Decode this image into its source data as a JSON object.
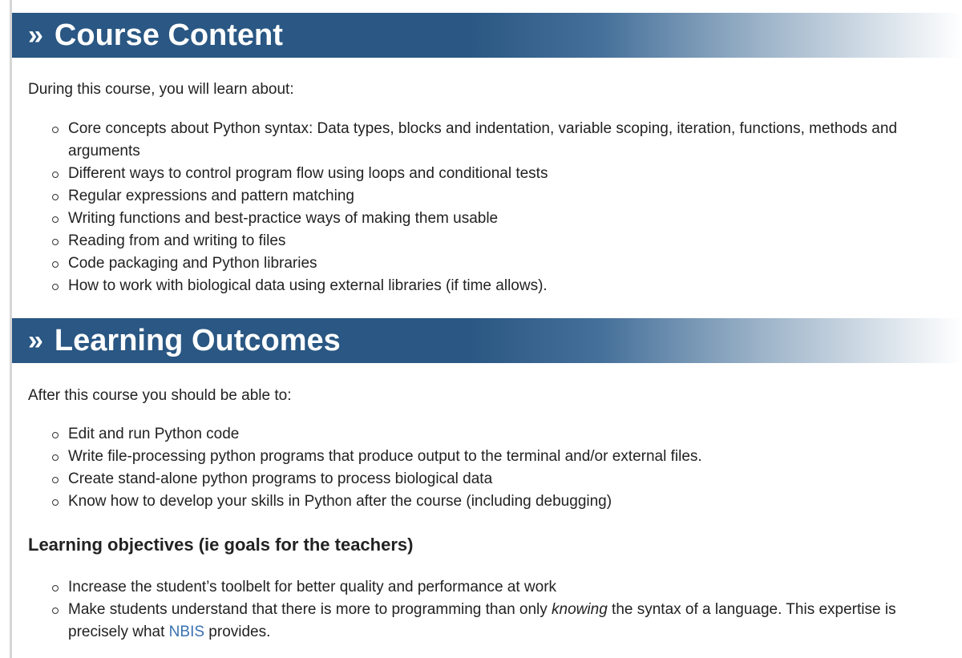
{
  "course_content": {
    "header": {
      "symbol": "»",
      "title": "Course Content"
    },
    "intro": "During this course, you will learn about:",
    "items": [
      "Core concepts about Python syntax: Data types, blocks and indentation, variable scoping, iteration, functions, methods and arguments",
      "Different ways to control program flow using loops and conditional tests",
      "Regular expressions and pattern matching",
      "Writing functions and best-practice ways of making them usable",
      "Reading from and writing to files",
      "Code packaging and Python libraries",
      "How to work with biological data using external libraries (if time allows)."
    ]
  },
  "learning_outcomes": {
    "header": {
      "symbol": "»",
      "title": "Learning Outcomes"
    },
    "intro": "After this course you should be able to:",
    "items": [
      "Edit and run Python code",
      "Write file-processing python programs that produce output to the terminal and/or external files.",
      "Create stand-alone python programs to process biological data",
      "Know how to develop your skills in Python after the course (including debugging)"
    ]
  },
  "learning_objectives": {
    "heading": "Learning objectives (ie goals for the teachers)",
    "item1": "Increase the student’s toolbelt for better quality and performance at work",
    "item2": {
      "pre": "Make students understand that there is more to programming than only ",
      "emphasis": "knowing",
      "mid": " the syntax of a language. This expertise is precisely what ",
      "link": "NBIS",
      "post": " provides."
    }
  },
  "colors": {
    "header_blue": "#2a5783",
    "link": "#3a72b0"
  }
}
